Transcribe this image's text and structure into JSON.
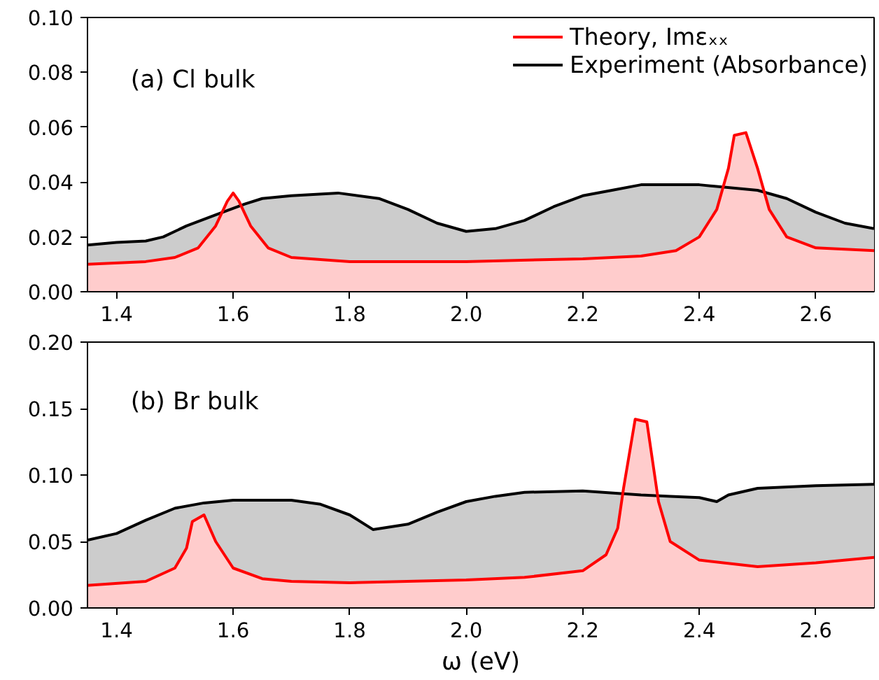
{
  "chart_data": [
    {
      "type": "area",
      "xlim": [
        1.35,
        2.7
      ],
      "ylim": [
        0,
        0.1
      ],
      "xticks": [
        1.4,
        1.6,
        1.8,
        {
          "value": 2.0,
          "label": "2.0"
        },
        2.2,
        2.4,
        2.6
      ],
      "yticks": [
        {
          "value": 0,
          "label": "0.00"
        },
        {
          "value": 0.02,
          "label": "0.02"
        },
        {
          "value": 0.04,
          "label": "0.04"
        },
        {
          "value": 0.06,
          "label": "0.06"
        },
        {
          "value": 0.08,
          "label": "0.08"
        },
        {
          "value": 0.1,
          "label": "0.10"
        }
      ],
      "annotations": [
        "(a) Cl bulk"
      ],
      "legend": "top right",
      "grid": false,
      "series": [
        {
          "name": "Experiment (Absorbance)",
          "color": "#000000",
          "x": [
            1.35,
            1.4,
            1.45,
            1.48,
            1.52,
            1.57,
            1.62,
            1.65,
            1.7,
            1.78,
            1.85,
            1.9,
            1.95,
            2.0,
            2.05,
            2.1,
            2.15,
            2.2,
            2.25,
            2.3,
            2.4,
            2.5,
            2.55,
            2.6,
            2.65,
            2.7
          ],
          "values": [
            0.017,
            0.018,
            0.0185,
            0.02,
            0.024,
            0.028,
            0.032,
            0.034,
            0.035,
            0.036,
            0.034,
            0.03,
            0.025,
            0.022,
            0.023,
            0.026,
            0.031,
            0.035,
            0.037,
            0.039,
            0.039,
            0.037,
            0.034,
            0.029,
            0.025,
            0.023
          ]
        },
        {
          "name": "Theory, Imεₓₓ",
          "color": "#ff0000",
          "x": [
            1.35,
            1.45,
            1.5,
            1.54,
            1.57,
            1.59,
            1.6,
            1.61,
            1.63,
            1.66,
            1.7,
            1.8,
            2.0,
            2.2,
            2.3,
            2.36,
            2.4,
            2.43,
            2.45,
            2.46,
            2.48,
            2.5,
            2.52,
            2.55,
            2.6,
            2.7
          ],
          "values": [
            0.01,
            0.011,
            0.0125,
            0.016,
            0.024,
            0.033,
            0.036,
            0.033,
            0.024,
            0.016,
            0.0125,
            0.011,
            0.011,
            0.012,
            0.013,
            0.015,
            0.02,
            0.03,
            0.045,
            0.057,
            0.058,
            0.045,
            0.03,
            0.02,
            0.016,
            0.015
          ]
        }
      ]
    },
    {
      "type": "area",
      "xlim": [
        1.35,
        2.7
      ],
      "ylim": [
        0,
        0.2
      ],
      "xticks": [
        1.4,
        1.6,
        1.8,
        {
          "value": 2.0,
          "label": "2.0"
        },
        2.2,
        2.4,
        2.6
      ],
      "yticks": [
        {
          "value": 0,
          "label": "0.00"
        },
        0.05,
        {
          "value": 0.1,
          "label": "0.10"
        },
        0.15,
        {
          "value": 0.2,
          "label": "0.20"
        }
      ],
      "xlabel": "ω (eV)",
      "annotations": [
        "(b) Br bulk"
      ],
      "grid": false,
      "series": [
        {
          "color": "#000000",
          "x": [
            1.35,
            1.4,
            1.45,
            1.5,
            1.55,
            1.6,
            1.7,
            1.75,
            1.8,
            1.84,
            1.9,
            1.95,
            2.0,
            2.05,
            2.1,
            2.2,
            2.3,
            2.35,
            2.4,
            2.43,
            2.45,
            2.5,
            2.6,
            2.7
          ],
          "values": [
            0.051,
            0.056,
            0.066,
            0.075,
            0.079,
            0.081,
            0.081,
            0.078,
            0.07,
            0.059,
            0.063,
            0.072,
            0.08,
            0.084,
            0.087,
            0.088,
            0.085,
            0.084,
            0.083,
            0.08,
            0.085,
            0.09,
            0.092,
            0.093
          ]
        },
        {
          "color": "#ff0000",
          "x": [
            1.35,
            1.45,
            1.5,
            1.52,
            1.53,
            1.55,
            1.57,
            1.6,
            1.65,
            1.7,
            1.8,
            2.0,
            2.1,
            2.2,
            2.24,
            2.26,
            2.27,
            2.29,
            2.31,
            2.32,
            2.33,
            2.35,
            2.4,
            2.5,
            2.6,
            2.7
          ],
          "values": [
            0.017,
            0.02,
            0.03,
            0.045,
            0.065,
            0.07,
            0.05,
            0.03,
            0.022,
            0.02,
            0.019,
            0.021,
            0.023,
            0.028,
            0.04,
            0.06,
            0.09,
            0.142,
            0.14,
            0.11,
            0.08,
            0.05,
            0.036,
            0.031,
            0.034,
            0.038
          ]
        }
      ]
    }
  ]
}
